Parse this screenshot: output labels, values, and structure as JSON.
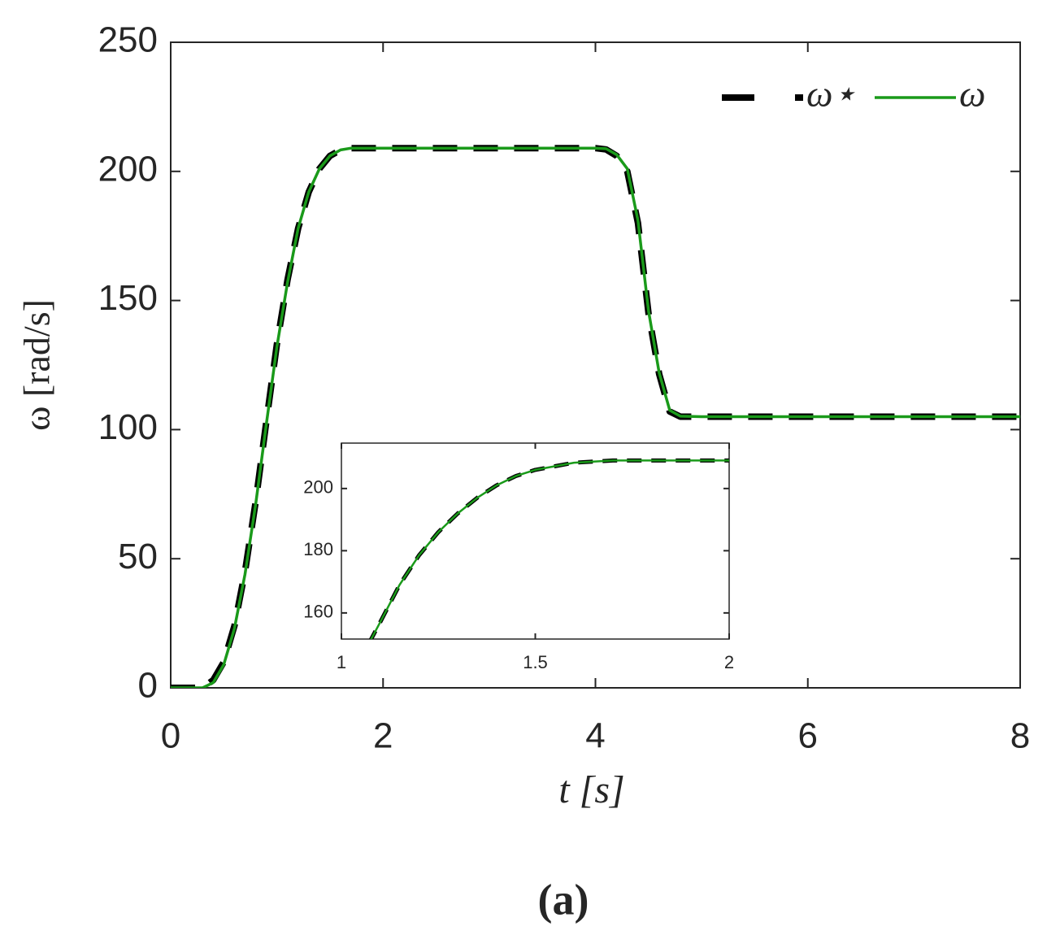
{
  "chart_data": [
    {
      "type": "line",
      "x_label": "t [s]",
      "y_label": "ω [rad/s]",
      "xlim": [
        0,
        8
      ],
      "ylim": [
        0,
        250
      ],
      "xticks": [
        0,
        2,
        4,
        6,
        8
      ],
      "yticks": [
        0,
        50,
        100,
        150,
        200,
        250
      ],
      "legend": "upper right",
      "x": [
        0,
        0.3,
        0.4,
        0.5,
        0.6,
        0.7,
        0.8,
        0.9,
        1.0,
        1.1,
        1.2,
        1.3,
        1.4,
        1.5,
        1.6,
        1.7,
        2,
        4,
        4.1,
        4.2,
        4.3,
        4.4,
        4.5,
        4.6,
        4.7,
        4.8,
        5,
        8
      ],
      "series": [
        {
          "name": "ω⋆",
          "color": "#000000",
          "style": "dashed",
          "values": [
            0,
            0,
            3,
            10,
            24,
            45,
            72,
            103,
            133,
            158,
            178,
            192,
            201,
            206,
            208.3,
            209,
            209,
            209,
            208.5,
            206,
            200,
            180,
            145,
            121.5,
            107,
            105,
            105,
            105
          ]
        },
        {
          "name": "ω",
          "color": "#1a9a1a",
          "style": "solid",
          "values": [
            0,
            0,
            2,
            9,
            23,
            44,
            71,
            102,
            132,
            157,
            178,
            192,
            201,
            206,
            208.3,
            209,
            209,
            209,
            208.8,
            206.5,
            201,
            181,
            146,
            122,
            107.5,
            105.2,
            105,
            105
          ]
        }
      ]
    },
    {
      "type": "line",
      "xlim": [
        1,
        2
      ],
      "ylim": [
        151.6,
        214.6
      ],
      "xticks": [
        1,
        {
          "value": 1.5,
          "label": "1.5"
        },
        2
      ],
      "yticks": [
        160,
        180,
        200
      ],
      "x": [
        1.07,
        1.1,
        1.15,
        1.2,
        1.25,
        1.3,
        1.35,
        1.4,
        1.45,
        1.5,
        1.6,
        1.7,
        1.8,
        2
      ],
      "series": [
        {
          "name": "ω⋆",
          "color": "#000000",
          "style": "dashed",
          "values": [
            150,
            157,
            169,
            178.5,
            186,
            192,
            197,
            201,
            204,
            206,
            208.3,
            209,
            209,
            209
          ]
        },
        {
          "name": "ω",
          "color": "#1a9a1a",
          "style": "solid",
          "values": [
            150,
            157,
            169,
            178.5,
            186,
            192,
            197,
            201,
            204,
            206,
            208.3,
            209,
            209,
            209
          ]
        }
      ]
    }
  ],
  "caption": "(a)"
}
